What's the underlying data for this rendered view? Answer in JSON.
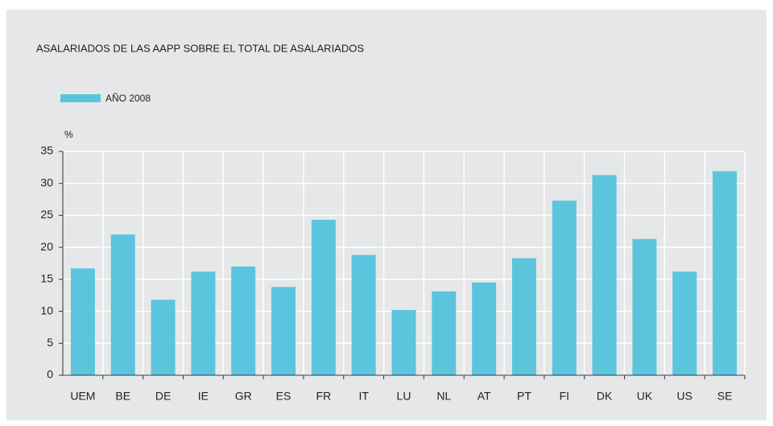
{
  "chart_data": {
    "type": "bar",
    "title": "ASALARIADOS DE LAS AAPP SOBRE EL TOTAL DE ASALARIADOS",
    "y_label": "%",
    "categories": [
      "UEM",
      "BE",
      "DE",
      "IE",
      "GR",
      "ES",
      "FR",
      "IT",
      "LU",
      "NL",
      "AT",
      "PT",
      "FI",
      "DK",
      "UK",
      "US",
      "SE"
    ],
    "series": [
      {
        "name": "AÑO 2008",
        "color": "#5bc5de",
        "values": [
          16.7,
          22,
          11.8,
          16.2,
          17,
          13.8,
          24.3,
          18.8,
          10.2,
          13.1,
          14.5,
          18.3,
          27.3,
          31.3,
          21.3,
          16.2,
          31.9
        ]
      }
    ],
    "ylim": [
      0,
      35
    ],
    "yticks": [
      0,
      5,
      10,
      15,
      20,
      25,
      30,
      35
    ],
    "grid": true
  }
}
